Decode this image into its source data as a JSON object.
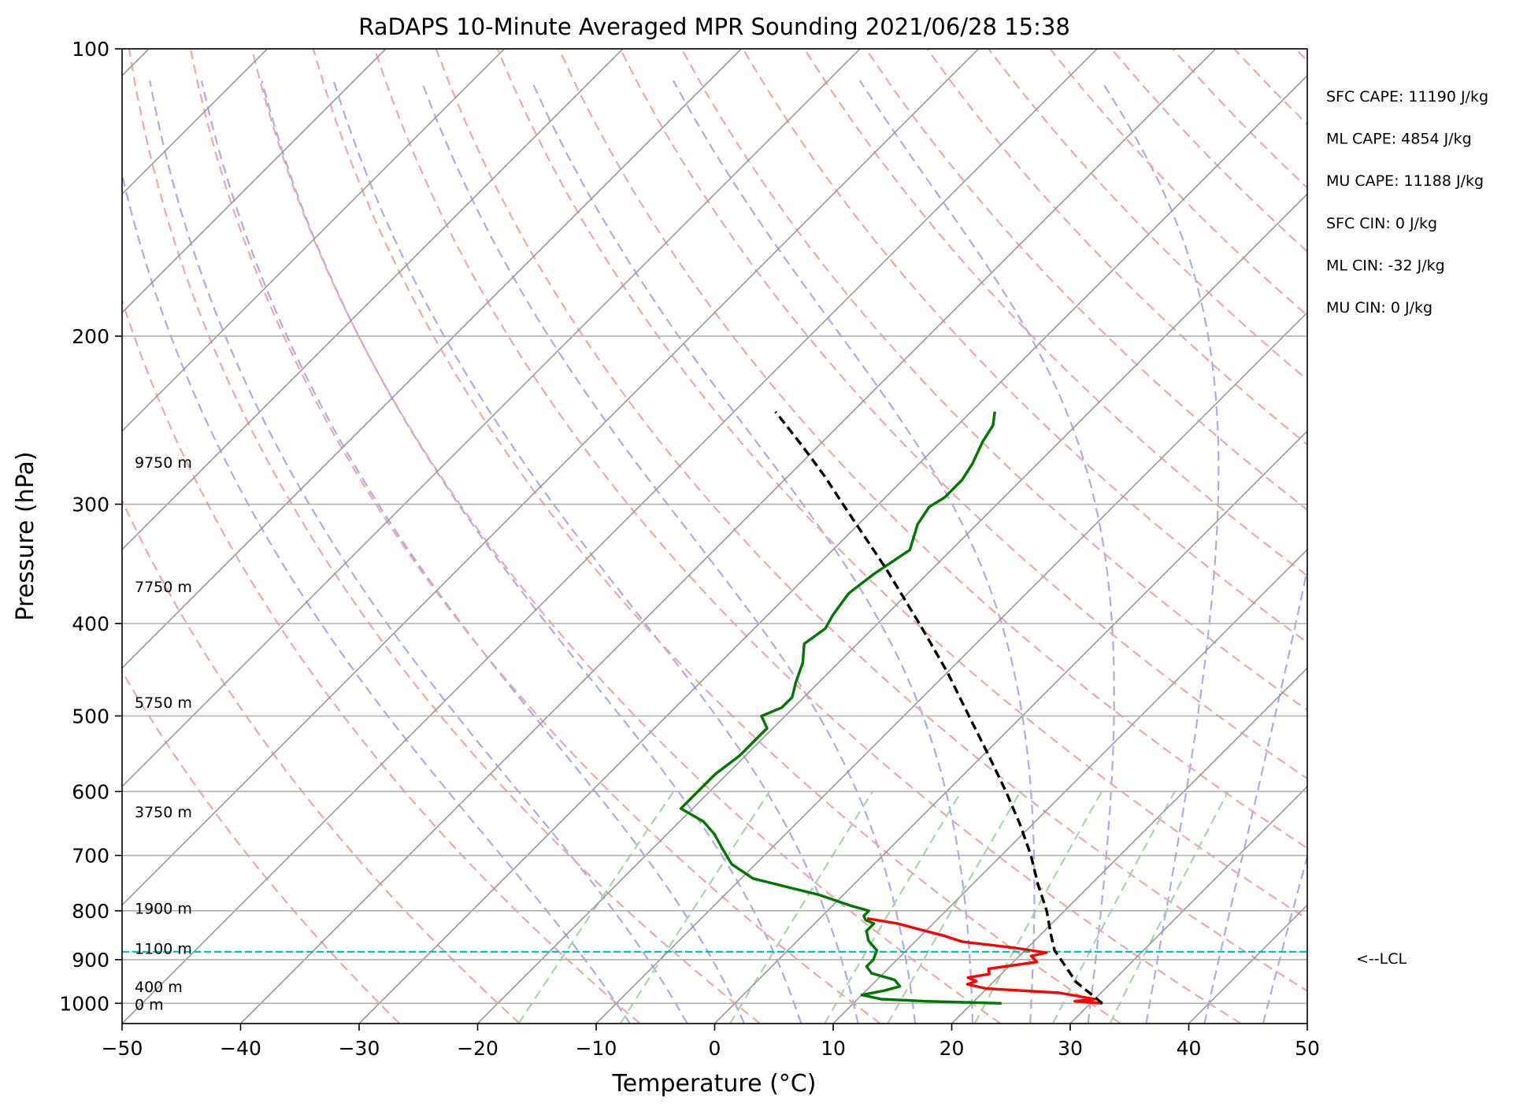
{
  "chart_data": {
    "type": "line",
    "title": "RaDAPS 10-Minute Averaged MPR Sounding 2021/06/28 15:38",
    "xlabel": "Temperature (°C)",
    "ylabel": "Pressure (hPa)",
    "xlim": [
      -50,
      50
    ],
    "ylim": [
      1050,
      100
    ],
    "y_scale": "log",
    "grid": true,
    "x_ticks": [
      -50,
      -40,
      -30,
      -20,
      -10,
      0,
      10,
      20,
      30,
      40,
      50
    ],
    "x_tick_labels": [
      "−50",
      "−40",
      "−30",
      "−20",
      "−10",
      "0",
      "10",
      "20",
      "30",
      "40",
      "50"
    ],
    "y_ticks": [
      100,
      200,
      300,
      400,
      500,
      600,
      700,
      800,
      900,
      1000
    ],
    "y_tick_labels": [
      "100",
      "200",
      "300",
      "400",
      "500",
      "600",
      "700",
      "800",
      "900",
      "1000"
    ],
    "skew": "45-degree skewed temperature axis (Skew-T log-P)",
    "reference_lines": {
      "isotherms": {
        "color": "#999999",
        "style": "solid"
      },
      "dry_adiabats": {
        "color": "#f4a6a6",
        "style": "dashed"
      },
      "moist_adiabats": {
        "color": "#aaaaf0",
        "style": "dashed"
      },
      "mixing_ratio_lines": {
        "color": "#a9d4a9",
        "style": "dashed",
        "top_pressure": 600
      }
    },
    "series": [
      {
        "role": "temperature",
        "color": "#ff0000",
        "points": [
          [
            1000,
            31.0
          ],
          [
            995,
            28.5
          ],
          [
            990,
            30.0
          ],
          [
            975,
            26.5
          ],
          [
            965,
            20.0
          ],
          [
            955,
            18.0
          ],
          [
            948,
            18.5
          ],
          [
            940,
            17.5
          ],
          [
            932,
            19.0
          ],
          [
            920,
            18.5
          ],
          [
            905,
            22.0
          ],
          [
            892,
            21.0
          ],
          [
            885,
            22.0
          ],
          [
            875,
            19.0
          ],
          [
            862,
            14.0
          ],
          [
            850,
            12.0
          ],
          [
            840,
            10.0
          ],
          [
            825,
            7.0
          ],
          [
            815,
            4.0
          ]
        ]
      },
      {
        "role": "dewpoint",
        "color": "#007700",
        "points": [
          [
            1000,
            22.5
          ],
          [
            995,
            16.0
          ],
          [
            990,
            12.0
          ],
          [
            980,
            10.0
          ],
          [
            970,
            11.5
          ],
          [
            960,
            12.5
          ],
          [
            945,
            11.5
          ],
          [
            930,
            9.0
          ],
          [
            915,
            8.0
          ],
          [
            900,
            8.0
          ],
          [
            880,
            7.5
          ],
          [
            860,
            6.0
          ],
          [
            840,
            5.0
          ],
          [
            825,
            5.0
          ],
          [
            818,
            4.0
          ],
          [
            810,
            3.5
          ],
          [
            800,
            3.5
          ],
          [
            790,
            1.5
          ],
          [
            770,
            -2.0
          ],
          [
            740,
            -9.0
          ],
          [
            715,
            -12.0
          ],
          [
            690,
            -14.0
          ],
          [
            665,
            -16.0
          ],
          [
            645,
            -18.0
          ],
          [
            625,
            -21.0
          ],
          [
            610,
            -21.0
          ],
          [
            595,
            -21.0
          ],
          [
            575,
            -21.0
          ],
          [
            550,
            -20.5
          ],
          [
            530,
            -20.5
          ],
          [
            515,
            -20.5
          ],
          [
            500,
            -22.0
          ],
          [
            490,
            -21.0
          ],
          [
            478,
            -21.0
          ],
          [
            460,
            -22.0
          ],
          [
            440,
            -23.0
          ],
          [
            420,
            -24.5
          ],
          [
            405,
            -24.0
          ],
          [
            392,
            -24.5
          ],
          [
            372,
            -25.0
          ],
          [
            355,
            -24.5
          ],
          [
            335,
            -23.5
          ],
          [
            315,
            -25.0
          ],
          [
            302,
            -25.5
          ],
          [
            295,
            -25.0
          ],
          [
            283,
            -25.0
          ],
          [
            272,
            -25.5
          ],
          [
            258,
            -26.5
          ],
          [
            248,
            -27.0
          ],
          [
            240,
            -28.0
          ]
        ]
      },
      {
        "role": "parcel",
        "color": "#000000",
        "style": "dashed",
        "points": [
          [
            1000,
            31.0
          ],
          [
            950,
            27.0
          ],
          [
            880,
            22.5
          ],
          [
            850,
            21.0
          ],
          [
            800,
            18.5
          ],
          [
            750,
            15.5
          ],
          [
            700,
            12.5
          ],
          [
            650,
            9.0
          ],
          [
            600,
            5.0
          ],
          [
            550,
            0.5
          ],
          [
            500,
            -4.5
          ],
          [
            450,
            -10.0
          ],
          [
            400,
            -16.5
          ],
          [
            350,
            -24.0
          ],
          [
            300,
            -33.0
          ],
          [
            280,
            -37.0
          ],
          [
            260,
            -41.5
          ],
          [
            240,
            -46.5
          ]
        ]
      }
    ],
    "lcl": {
      "pressure": 883,
      "label": "<--LCL",
      "color": "#00bbbb"
    },
    "height_labels": [
      {
        "pressure": 1002,
        "label": "0 m"
      },
      {
        "pressure": 960,
        "label": "400 m"
      },
      {
        "pressure": 876,
        "label": "1100 m"
      },
      {
        "pressure": 795,
        "label": "1900 m"
      },
      {
        "pressure": 630,
        "label": "3750 m"
      },
      {
        "pressure": 484,
        "label": "5750 m"
      },
      {
        "pressure": 366,
        "label": "7750 m"
      },
      {
        "pressure": 271,
        "label": "9750 m"
      }
    ],
    "stats": [
      "SFC CAPE: 11190 J/kg",
      "ML CAPE: 4854 J/kg",
      "MU CAPE: 11188 J/kg",
      "SFC CIN: 0 J/kg",
      "ML CIN: -32 J/kg",
      "MU CIN: 0 J/kg"
    ]
  }
}
